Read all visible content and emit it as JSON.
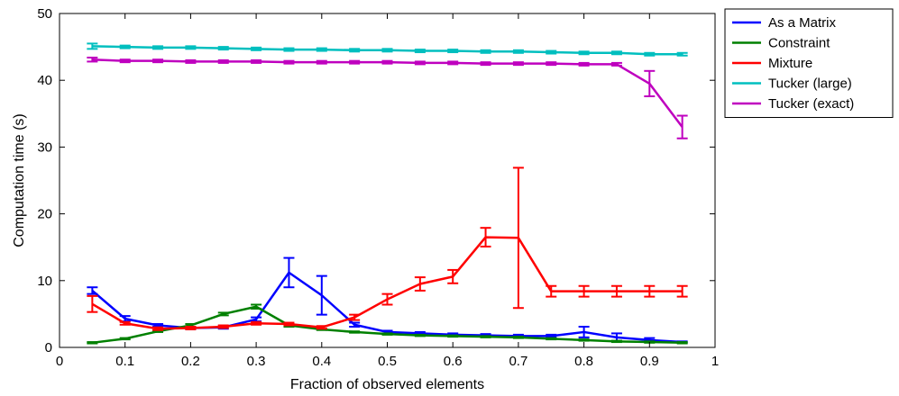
{
  "chart_data": {
    "type": "line",
    "xlabel": "Fraction of observed elements",
    "ylabel": "Computation time (s)",
    "xlim": [
      0,
      1
    ],
    "ylim": [
      0,
      50
    ],
    "xticks": [
      "0",
      "0.1",
      "0.2",
      "0.3",
      "0.4",
      "0.5",
      "0.6",
      "0.7",
      "0.8",
      "0.9",
      "1"
    ],
    "yticks": [
      "0",
      "10",
      "20",
      "30",
      "40",
      "50"
    ],
    "grid": false,
    "legend_position": "outside top-right",
    "x": [
      0.05,
      0.1,
      0.15,
      0.2,
      0.25,
      0.3,
      0.35,
      0.4,
      0.45,
      0.5,
      0.55,
      0.6,
      0.65,
      0.7,
      0.75,
      0.8,
      0.85,
      0.9,
      0.95
    ],
    "series": [
      {
        "name": "As a Matrix",
        "color": "#0000ff",
        "values": [
          8.5,
          4.3,
          3.3,
          2.9,
          3.0,
          4.2,
          11.2,
          7.8,
          3.4,
          2.3,
          2.1,
          1.9,
          1.8,
          1.7,
          1.7,
          2.3,
          1.5,
          1.1,
          0.8
        ],
        "errors": [
          0.5,
          0.4,
          0.2,
          0.2,
          0.2,
          0.3,
          2.2,
          2.9,
          0.3,
          0.2,
          0.2,
          0.2,
          0.2,
          0.2,
          0.2,
          0.8,
          0.6,
          0.3,
          0.1
        ]
      },
      {
        "name": "Constraint",
        "color": "#008000",
        "values": [
          0.7,
          1.3,
          2.4,
          3.3,
          5.0,
          6.1,
          3.3,
          2.7,
          2.3,
          2.0,
          1.8,
          1.7,
          1.6,
          1.5,
          1.3,
          1.1,
          0.9,
          0.8,
          0.7
        ],
        "errors": [
          0.1,
          0.1,
          0.1,
          0.2,
          0.2,
          0.3,
          0.2,
          0.1,
          0.1,
          0.1,
          0.1,
          0.1,
          0.1,
          0.1,
          0.1,
          0.1,
          0.1,
          0.1,
          0.1
        ]
      },
      {
        "name": "Mixture",
        "color": "#ff0000",
        "values": [
          6.5,
          3.6,
          2.8,
          2.9,
          3.1,
          3.6,
          3.5,
          3.0,
          4.5,
          7.2,
          9.5,
          10.6,
          16.5,
          16.4,
          8.4,
          8.4,
          8.4,
          8.4,
          8.4
        ],
        "errors": [
          1.2,
          0.2,
          0.2,
          0.2,
          0.2,
          0.2,
          0.2,
          0.2,
          0.4,
          0.8,
          1.0,
          1.0,
          1.4,
          10.5,
          0.8,
          0.8,
          0.8,
          0.8,
          0.8
        ]
      },
      {
        "name": "Tucker (large)",
        "color": "#00bfbf",
        "values": [
          45.1,
          45.0,
          44.9,
          44.9,
          44.8,
          44.7,
          44.6,
          44.6,
          44.5,
          44.5,
          44.4,
          44.4,
          44.3,
          44.3,
          44.2,
          44.1,
          44.1,
          43.9,
          43.9
        ],
        "errors": [
          0.4,
          0.2,
          0.2,
          0.2,
          0.2,
          0.2,
          0.2,
          0.2,
          0.2,
          0.2,
          0.2,
          0.2,
          0.2,
          0.2,
          0.2,
          0.2,
          0.2,
          0.2,
          0.2
        ]
      },
      {
        "name": "Tucker (exact)",
        "color": "#bf00bf",
        "values": [
          43.1,
          42.9,
          42.9,
          42.8,
          42.8,
          42.8,
          42.7,
          42.7,
          42.7,
          42.7,
          42.6,
          42.6,
          42.5,
          42.5,
          42.5,
          42.4,
          42.4,
          39.5,
          33.0
        ],
        "errors": [
          0.3,
          0.2,
          0.2,
          0.2,
          0.2,
          0.2,
          0.2,
          0.2,
          0.2,
          0.2,
          0.2,
          0.2,
          0.2,
          0.2,
          0.2,
          0.2,
          0.2,
          1.9,
          1.7
        ]
      }
    ]
  }
}
